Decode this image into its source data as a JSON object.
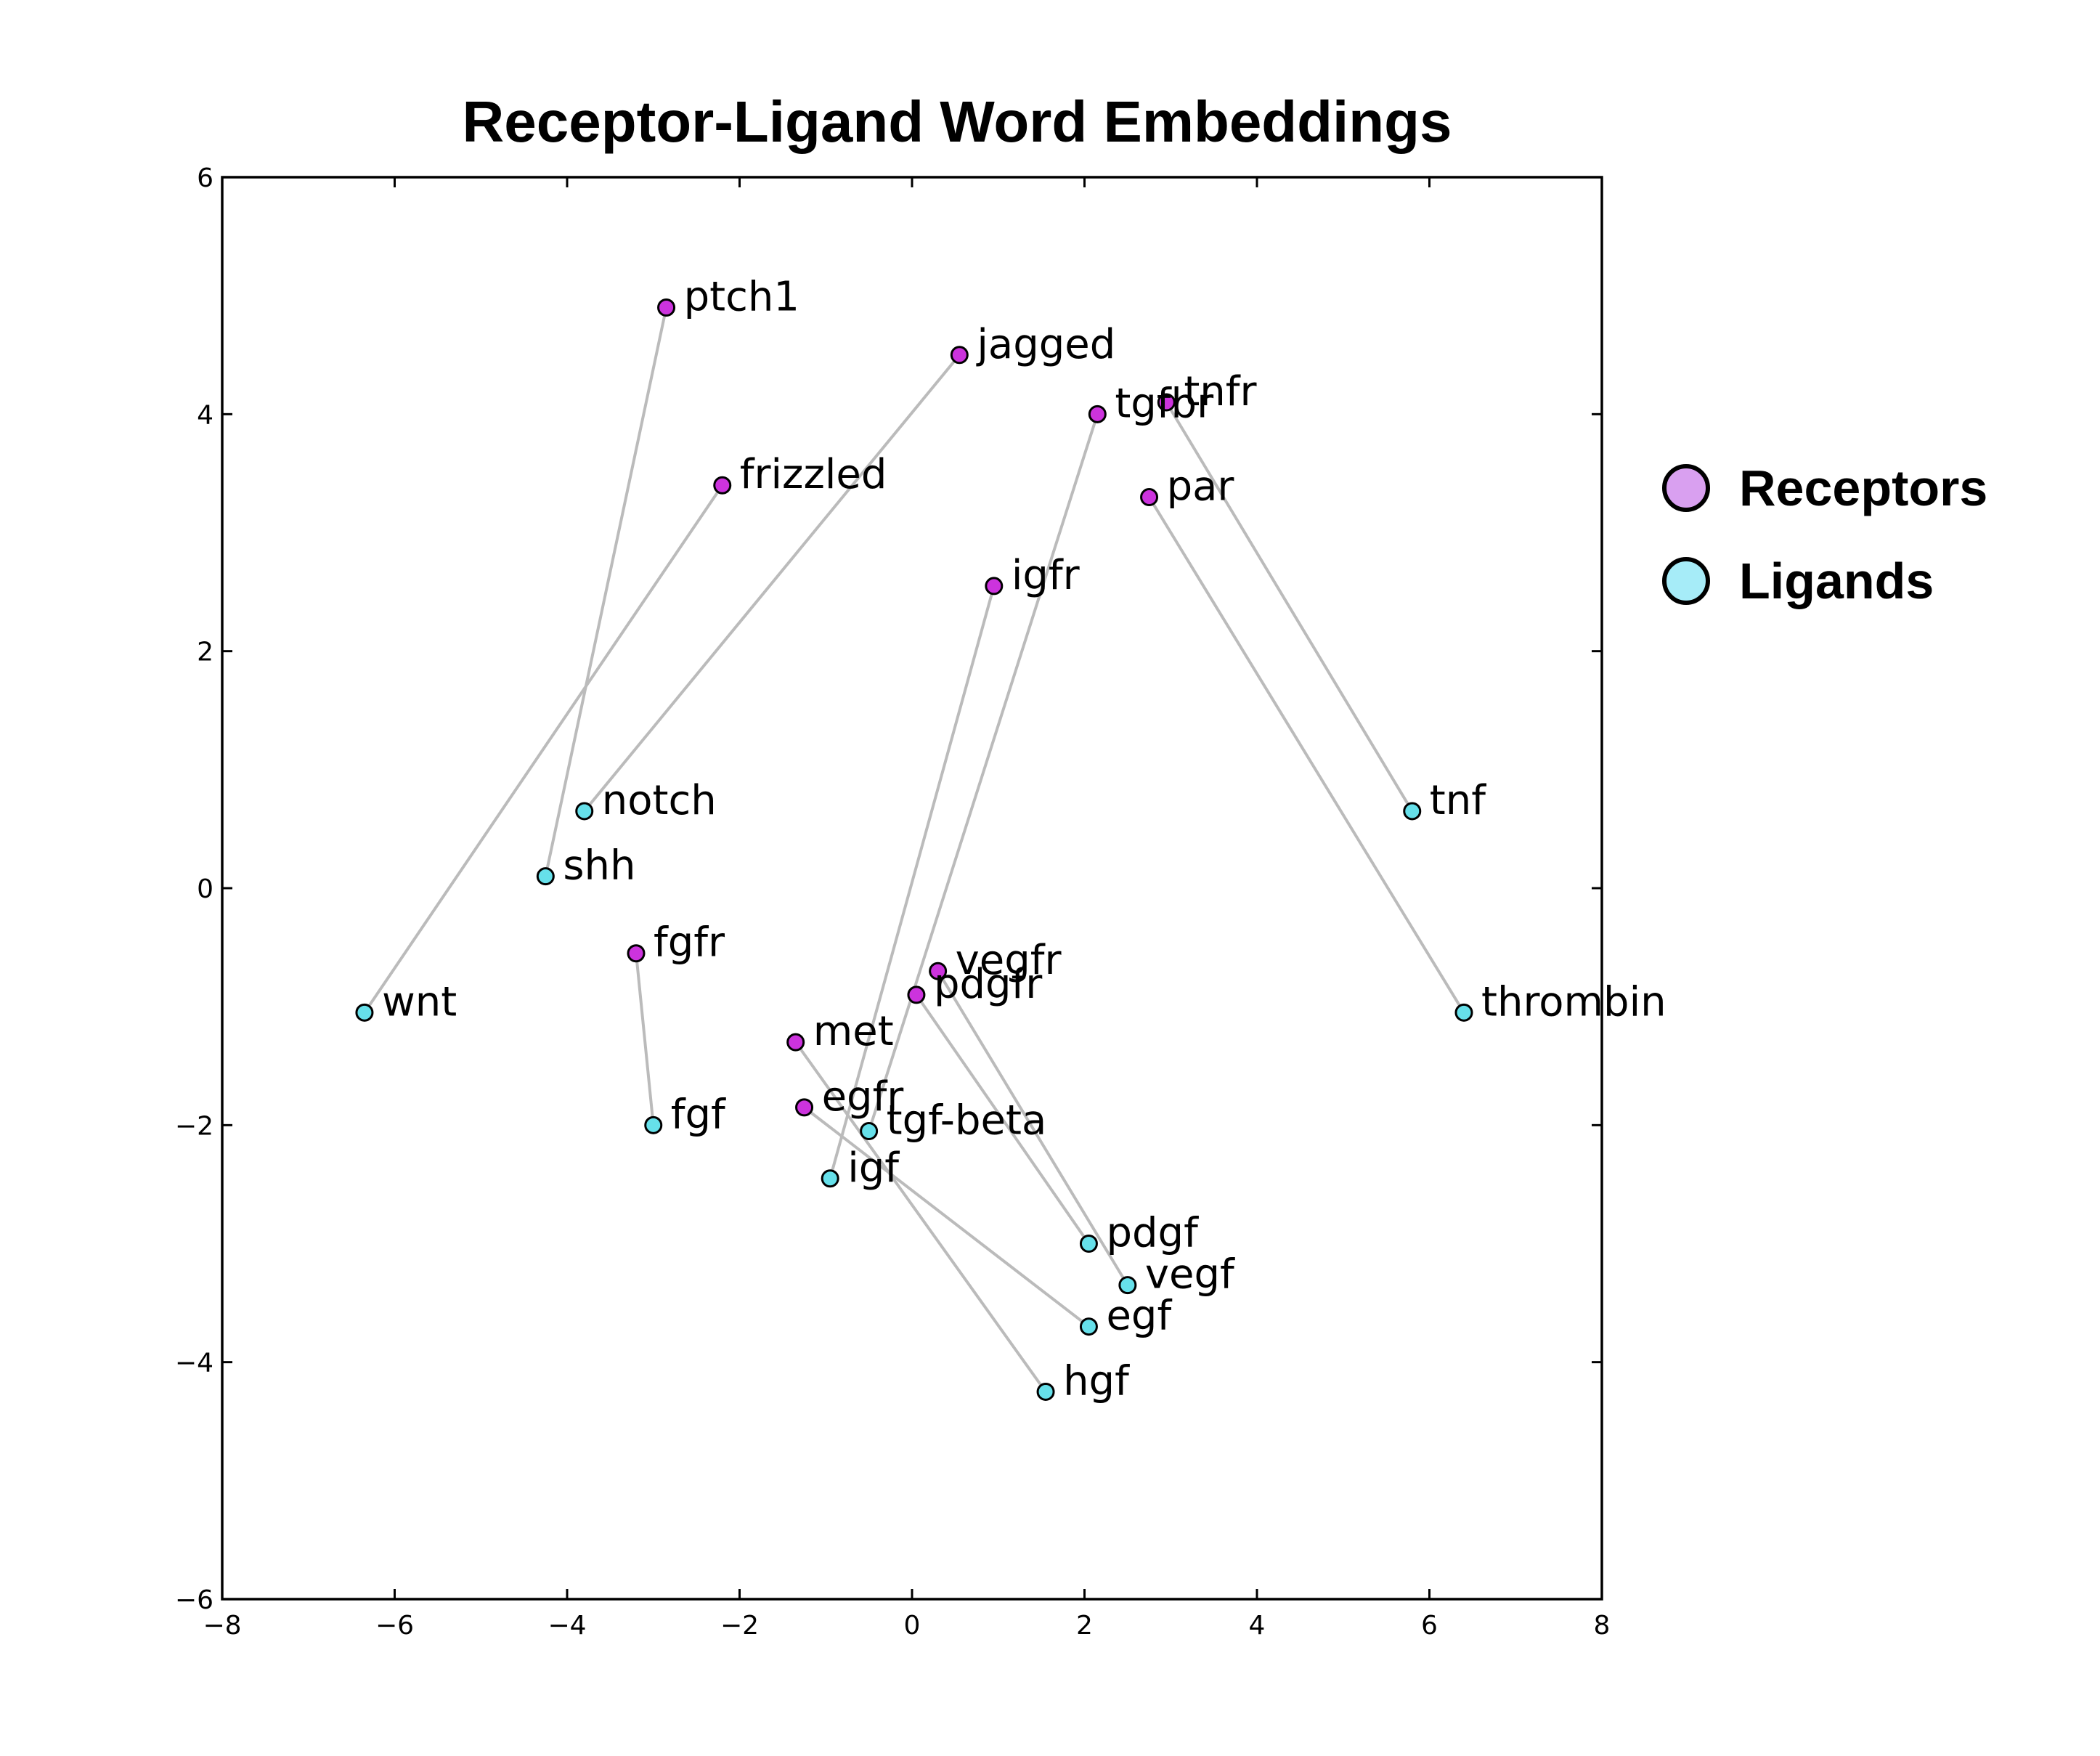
{
  "chart_data": {
    "type": "scatter",
    "title": "Receptor-Ligand Word Embeddings",
    "xlabel": "",
    "ylabel": "",
    "xlim": [
      -8,
      8
    ],
    "ylim": [
      -6,
      6
    ],
    "x_ticks": [
      "−8",
      "−6",
      "−4",
      "−2",
      "0",
      "2",
      "4",
      "6",
      "8"
    ],
    "y_ticks": [
      "−6",
      "−4",
      "−2",
      "0",
      "2",
      "4",
      "6"
    ],
    "grid": false,
    "legend_position": "right",
    "legend": [
      {
        "label": "Receptors",
        "color": "#d9a0f0"
      },
      {
        "label": "Ligands",
        "color": "#a6ecf8"
      }
    ],
    "series": [
      {
        "name": "Receptors",
        "color": "#cc33dd",
        "points": [
          {
            "label": "ptch1",
            "x": -2.85,
            "y": 4.9
          },
          {
            "label": "jagged",
            "x": 0.55,
            "y": 4.5
          },
          {
            "label": "tnfr",
            "x": 2.95,
            "y": 4.1
          },
          {
            "label": "tgfbr",
            "x": 2.15,
            "y": 4.0
          },
          {
            "label": "frizzled",
            "x": -2.2,
            "y": 3.4
          },
          {
            "label": "par",
            "x": 2.75,
            "y": 3.3
          },
          {
            "label": "igfr",
            "x": 0.95,
            "y": 2.55
          },
          {
            "label": "fgfr",
            "x": -3.2,
            "y": -0.55
          },
          {
            "label": "vegfr",
            "x": 0.3,
            "y": -0.7
          },
          {
            "label": "pdgfr",
            "x": 0.05,
            "y": -0.9
          },
          {
            "label": "met",
            "x": -1.35,
            "y": -1.3
          },
          {
            "label": "egfr",
            "x": -1.25,
            "y": -1.85
          }
        ]
      },
      {
        "name": "Ligands",
        "color": "#66e0ea",
        "points": [
          {
            "label": "tnf",
            "x": 5.8,
            "y": 0.65
          },
          {
            "label": "notch",
            "x": -3.8,
            "y": 0.65
          },
          {
            "label": "shh",
            "x": -4.25,
            "y": 0.1
          },
          {
            "label": "wnt",
            "x": -6.35,
            "y": -1.05
          },
          {
            "label": "thrombin",
            "x": 6.4,
            "y": -1.05
          },
          {
            "label": "fgf",
            "x": -3.0,
            "y": -2.0
          },
          {
            "label": "tgf-beta",
            "x": -0.5,
            "y": -2.05
          },
          {
            "label": "igf",
            "x": -0.95,
            "y": -2.45
          },
          {
            "label": "pdgf",
            "x": 2.05,
            "y": -3.0
          },
          {
            "label": "vegf",
            "x": 2.5,
            "y": -3.35
          },
          {
            "label": "egf",
            "x": 2.05,
            "y": -3.7
          },
          {
            "label": "hgf",
            "x": 1.55,
            "y": -4.25
          }
        ]
      }
    ],
    "pairs": [
      [
        "ptch1",
        "shh"
      ],
      [
        "jagged",
        "notch"
      ],
      [
        "frizzled",
        "wnt"
      ],
      [
        "tnfr",
        "tnf"
      ],
      [
        "par",
        "thrombin"
      ],
      [
        "tgfbr",
        "tgf-beta"
      ],
      [
        "igfr",
        "igf"
      ],
      [
        "fgfr",
        "fgf"
      ],
      [
        "vegfr",
        "vegf"
      ],
      [
        "pdgfr",
        "pdgf"
      ],
      [
        "met",
        "hgf"
      ],
      [
        "egfr",
        "egf"
      ]
    ]
  }
}
